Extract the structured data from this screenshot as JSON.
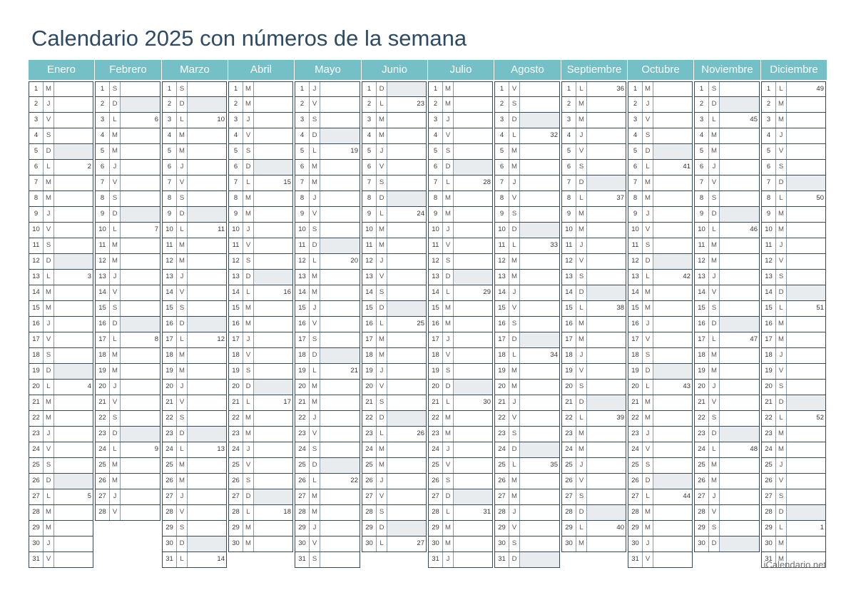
{
  "title": "Calendario 2025 con números de la semana",
  "footer": "iCalendario.net",
  "colors": {
    "header_bg": "#74c0c6",
    "header_text": "#ffffff",
    "title": "#2f4a63",
    "sunday_fill": "#e9ecee",
    "grid": "#34495e"
  },
  "year": 2025,
  "weekday_letters": [
    "L",
    "M",
    "M",
    "J",
    "V",
    "S",
    "D"
  ],
  "months": [
    {
      "name": "Enero",
      "days": 31,
      "start_weekday": 2
    },
    {
      "name": "Febrero",
      "days": 28,
      "start_weekday": 5
    },
    {
      "name": "Marzo",
      "days": 31,
      "start_weekday": 5
    },
    {
      "name": "Abril",
      "days": 30,
      "start_weekday": 1
    },
    {
      "name": "Mayo",
      "days": 31,
      "start_weekday": 3
    },
    {
      "name": "Junio",
      "days": 30,
      "start_weekday": 6
    },
    {
      "name": "Julio",
      "days": 31,
      "start_weekday": 1
    },
    {
      "name": "Agosto",
      "days": 31,
      "start_weekday": 4
    },
    {
      "name": "Septiembre",
      "days": 30,
      "start_weekday": 0
    },
    {
      "name": "Octubre",
      "days": 31,
      "start_weekday": 2
    },
    {
      "name": "Noviembre",
      "days": 30,
      "start_weekday": 5
    },
    {
      "name": "Diciembre",
      "days": 31,
      "start_weekday": 0
    }
  ],
  "week_numbers": {
    "Enero": {
      "6": "2",
      "13": "3",
      "20": "4",
      "27": "5"
    },
    "Febrero": {
      "3": "6",
      "10": "7",
      "17": "8",
      "24": "9"
    },
    "Marzo": {
      "3": "10",
      "10": "11",
      "17": "12",
      "24": "13",
      "31": "14"
    },
    "Abril": {
      "7": "15",
      "14": "16",
      "21": "17",
      "28": "18"
    },
    "Mayo": {
      "5": "19",
      "12": "20",
      "19": "21",
      "26": "22"
    },
    "Junio": {
      "2": "23",
      "9": "24",
      "16": "25",
      "23": "26",
      "30": "27"
    },
    "Julio": {
      "7": "28",
      "14": "29",
      "21": "30",
      "28": "31"
    },
    "Agosto": {
      "4": "32",
      "11": "33",
      "18": "34",
      "25": "35"
    },
    "Septiembre": {
      "1": "36",
      "8": "37",
      "15": "38",
      "22": "39",
      "29": "40"
    },
    "Octubre": {
      "6": "41",
      "13": "42",
      "20": "43",
      "27": "44"
    },
    "Noviembre": {
      "3": "45",
      "10": "46",
      "17": "47",
      "24": "48"
    },
    "Diciembre": {
      "1": "49",
      "8": "50",
      "15": "51",
      "22": "52",
      "29": "1"
    }
  }
}
